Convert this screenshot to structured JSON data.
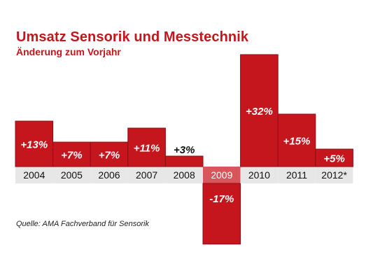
{
  "chart_title": "Umsatz Sensorik und Messtechnik",
  "chart_subtitle": "Änderung zum Vorjahr",
  "source_note": "Quelle: AMA Fachverband für Sensorik",
  "colors": {
    "bar": "#c4161c",
    "bar_stroke": "#8f0d12",
    "label_bar_band": "#e7e7e7",
    "label_bar_band_negative": "#d8565b",
    "title": "#c4161c",
    "value_label": "#ffffff",
    "value_label_dark": "#111111"
  },
  "chart_data": {
    "type": "bar",
    "title": "Umsatz Sensorik und Messtechnik",
    "subtitle": "Änderung zum Vorjahr",
    "categories": [
      "2004",
      "2005",
      "2006",
      "2007",
      "2008",
      "2009",
      "2010",
      "2011",
      "2012*"
    ],
    "values": [
      13,
      7,
      7,
      11,
      3,
      -17,
      32,
      15,
      5
    ],
    "value_labels": [
      "+13%",
      "+7%",
      "+7%",
      "+11%",
      "+3%",
      "-17%",
      "+32%",
      "+15%",
      "+5%"
    ],
    "unit": "%",
    "xlabel": "",
    "ylabel": "",
    "ylim": [
      -17,
      32
    ],
    "grid": false,
    "legend": false
  }
}
